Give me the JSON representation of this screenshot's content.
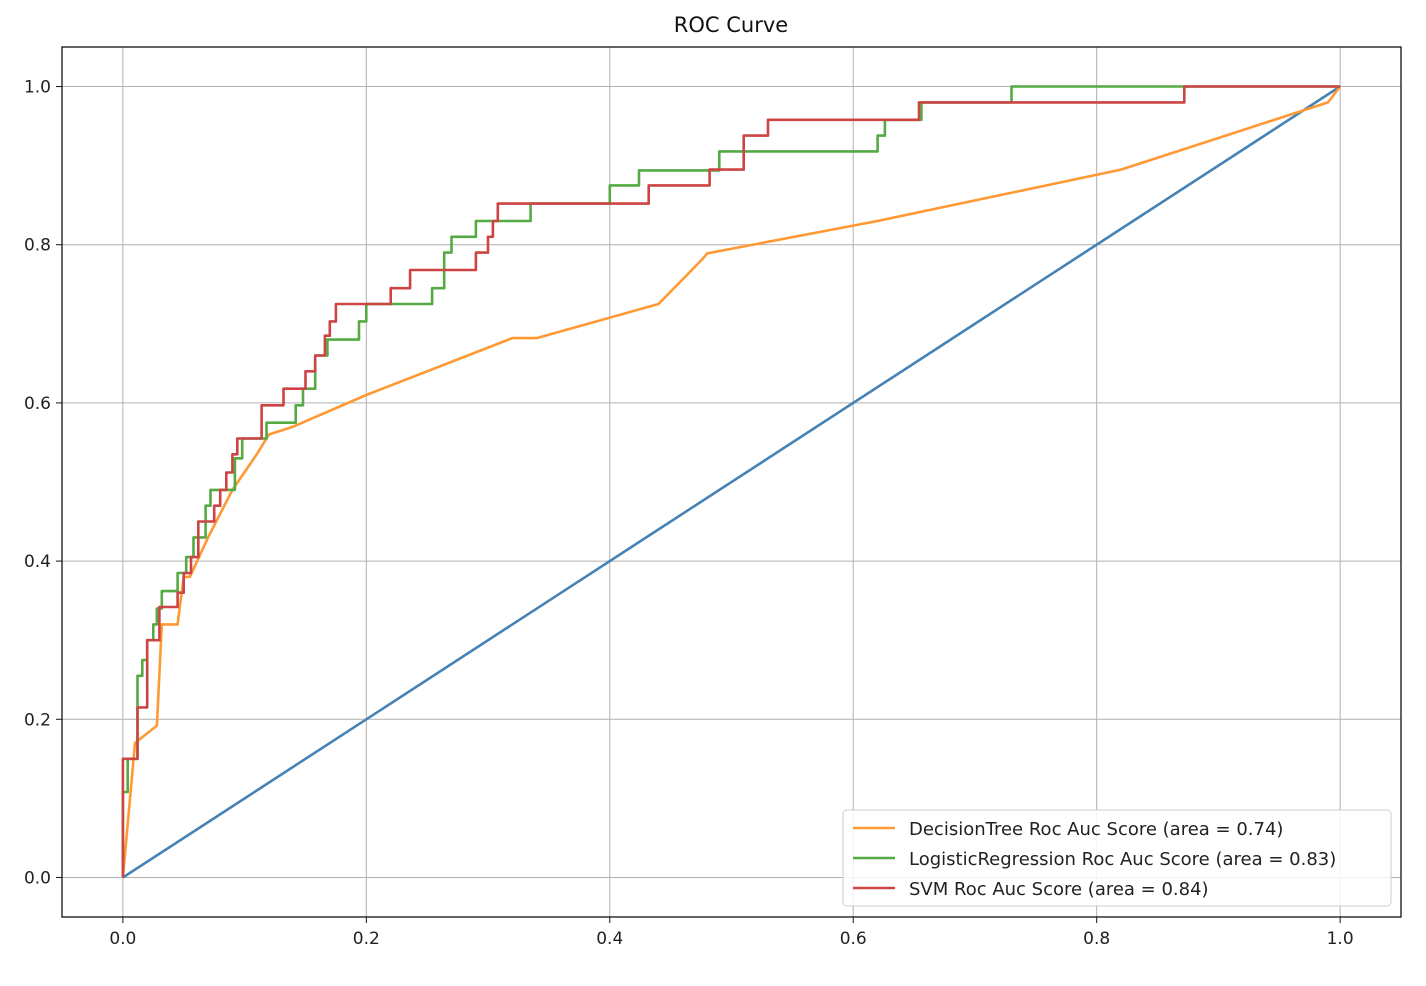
{
  "chart_data": {
    "type": "line",
    "title": "ROC Curve",
    "xlabel": "",
    "ylabel": "",
    "xlim": [
      -0.05,
      1.05
    ],
    "ylim": [
      -0.05,
      1.05
    ],
    "xticks": [
      0.0,
      0.2,
      0.4,
      0.6,
      0.8,
      1.0
    ],
    "yticks": [
      0.0,
      0.2,
      0.4,
      0.6,
      0.8,
      1.0
    ],
    "xtick_labels": [
      "0.0",
      "0.2",
      "0.4",
      "0.6",
      "0.8",
      "1.0"
    ],
    "ytick_labels": [
      "0.0",
      "0.2",
      "0.4",
      "0.6",
      "0.8",
      "1.0"
    ],
    "grid": true,
    "legend_position": "lower-right",
    "reference_line": {
      "color": "#4682b4",
      "x": [
        0,
        1
      ],
      "y": [
        0,
        1
      ]
    },
    "series": [
      {
        "name": "DecisionTree Roc Auc Score (area = 0.74)",
        "color": "#ff9933",
        "x": [
          0,
          0.01,
          0.028,
          0.032,
          0.045,
          0.05,
          0.055,
          0.07,
          0.09,
          0.11,
          0.12,
          0.14,
          0.2,
          0.32,
          0.34,
          0.44,
          0.475,
          0.48,
          0.62,
          0.82,
          0.99,
          1.0
        ],
        "y": [
          0,
          0.17,
          0.192,
          0.32,
          0.32,
          0.38,
          0.38,
          0.43,
          0.49,
          0.535,
          0.56,
          0.57,
          0.61,
          0.682,
          0.682,
          0.725,
          0.78,
          0.789,
          0.83,
          0.895,
          0.98,
          1.0
        ]
      },
      {
        "name": "LogisticRegression Roc Auc Score (area = 0.83)",
        "color": "#55aa44",
        "x": [
          0,
          0,
          0.004,
          0.004,
          0.012,
          0.012,
          0.016,
          0.016,
          0.02,
          0.02,
          0.025,
          0.025,
          0.028,
          0.028,
          0.032,
          0.032,
          0.045,
          0.045,
          0.052,
          0.052,
          0.058,
          0.058,
          0.068,
          0.068,
          0.072,
          0.072,
          0.078,
          0.078,
          0.092,
          0.092,
          0.098,
          0.098,
          0.118,
          0.118,
          0.14,
          0.14,
          0.142,
          0.142,
          0.148,
          0.148,
          0.158,
          0.158,
          0.168,
          0.168,
          0.178,
          0.178,
          0.194,
          0.194,
          0.2,
          0.2,
          0.254,
          0.254,
          0.264,
          0.264,
          0.27,
          0.27,
          0.29,
          0.29,
          0.335,
          0.335,
          0.4,
          0.4,
          0.424,
          0.424,
          0.49,
          0.49,
          0.62,
          0.62,
          0.626,
          0.626,
          0.656,
          0.656,
          0.73,
          0.73,
          1.0
        ],
        "y": [
          0,
          0.108,
          0.108,
          0.15,
          0.15,
          0.255,
          0.255,
          0.275,
          0.275,
          0.3,
          0.3,
          0.32,
          0.32,
          0.34,
          0.34,
          0.362,
          0.362,
          0.385,
          0.385,
          0.405,
          0.405,
          0.43,
          0.43,
          0.47,
          0.47,
          0.49,
          0.49,
          0.49,
          0.49,
          0.53,
          0.53,
          0.555,
          0.555,
          0.575,
          0.575,
          0.575,
          0.575,
          0.597,
          0.597,
          0.618,
          0.618,
          0.66,
          0.66,
          0.68,
          0.68,
          0.68,
          0.68,
          0.703,
          0.703,
          0.725,
          0.725,
          0.745,
          0.745,
          0.79,
          0.79,
          0.81,
          0.81,
          0.83,
          0.83,
          0.852,
          0.852,
          0.875,
          0.875,
          0.894,
          0.894,
          0.918,
          0.918,
          0.938,
          0.938,
          0.958,
          0.958,
          0.98,
          0.98,
          1.0,
          1.0
        ]
      },
      {
        "name": "SVM Roc Auc Score (area = 0.84)",
        "color": "#cc4444",
        "x": [
          0,
          0,
          0.012,
          0.012,
          0.02,
          0.02,
          0.03,
          0.03,
          0.045,
          0.045,
          0.05,
          0.05,
          0.056,
          0.056,
          0.062,
          0.062,
          0.075,
          0.075,
          0.08,
          0.08,
          0.085,
          0.085,
          0.09,
          0.09,
          0.094,
          0.094,
          0.114,
          0.114,
          0.132,
          0.132,
          0.15,
          0.15,
          0.158,
          0.158,
          0.166,
          0.166,
          0.17,
          0.17,
          0.175,
          0.175,
          0.182,
          0.182,
          0.22,
          0.22,
          0.236,
          0.236,
          0.29,
          0.29,
          0.3,
          0.3,
          0.304,
          0.304,
          0.308,
          0.308,
          0.432,
          0.432,
          0.482,
          0.482,
          0.51,
          0.51,
          0.53,
          0.53,
          0.64,
          0.64,
          0.654,
          0.654,
          0.872,
          0.872,
          1.0
        ],
        "y": [
          0,
          0.15,
          0.15,
          0.215,
          0.215,
          0.3,
          0.3,
          0.342,
          0.342,
          0.36,
          0.36,
          0.385,
          0.385,
          0.405,
          0.405,
          0.45,
          0.45,
          0.47,
          0.47,
          0.49,
          0.49,
          0.512,
          0.512,
          0.535,
          0.535,
          0.555,
          0.555,
          0.597,
          0.597,
          0.618,
          0.618,
          0.64,
          0.64,
          0.66,
          0.66,
          0.685,
          0.685,
          0.703,
          0.703,
          0.725,
          0.725,
          0.725,
          0.725,
          0.745,
          0.745,
          0.768,
          0.768,
          0.79,
          0.79,
          0.81,
          0.81,
          0.83,
          0.83,
          0.852,
          0.852,
          0.875,
          0.875,
          0.895,
          0.895,
          0.938,
          0.938,
          0.958,
          0.958,
          0.958,
          0.958,
          0.98,
          0.98,
          1.0,
          1.0
        ]
      }
    ]
  }
}
